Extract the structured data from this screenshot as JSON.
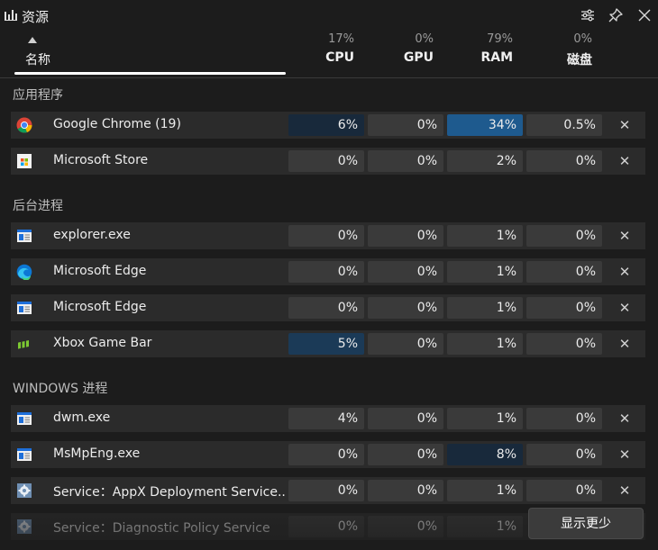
{
  "window": {
    "title": "资源"
  },
  "columns": {
    "name_label": "名称",
    "cpu": {
      "percent": "17%",
      "label": "CPU"
    },
    "gpu": {
      "percent": "0%",
      "label": "GPU"
    },
    "ram": {
      "percent": "79%",
      "label": "RAM"
    },
    "disk": {
      "percent": "0%",
      "label": "磁盘"
    }
  },
  "sections": [
    {
      "title": "应用程序",
      "rows": [
        {
          "name": "Google Chrome (19)",
          "icon": "chrome-icon",
          "cpu": "6%",
          "gpu": "0%",
          "ram": "34%",
          "disk": "0.5%"
        },
        {
          "name": "Microsoft Store",
          "icon": "microsoft-store-icon",
          "cpu": "0%",
          "gpu": "0%",
          "ram": "2%",
          "disk": "0%"
        }
      ]
    },
    {
      "title": "后台进程",
      "rows": [
        {
          "name": "explorer.exe",
          "icon": "app-window-icon",
          "cpu": "0%",
          "gpu": "0%",
          "ram": "1%",
          "disk": "0%"
        },
        {
          "name": "Microsoft Edge",
          "icon": "edge-icon",
          "cpu": "0%",
          "gpu": "0%",
          "ram": "1%",
          "disk": "0%"
        },
        {
          "name": "Microsoft Edge",
          "icon": "app-window-icon",
          "cpu": "0%",
          "gpu": "0%",
          "ram": "1%",
          "disk": "0%"
        },
        {
          "name": "Xbox Game Bar",
          "icon": "xbox-game-bar-icon",
          "cpu": "5%",
          "gpu": "0%",
          "ram": "1%",
          "disk": "0%"
        }
      ]
    },
    {
      "title": "WINDOWS 进程",
      "rows": [
        {
          "name": "dwm.exe",
          "icon": "app-window-icon",
          "cpu": "4%",
          "gpu": "0%",
          "ram": "1%",
          "disk": "0%"
        },
        {
          "name": "MsMpEng.exe",
          "icon": "app-window-icon",
          "cpu": "0%",
          "gpu": "0%",
          "ram": "8%",
          "disk": "0%"
        },
        {
          "name": "Service：AppX Deployment Service...",
          "icon": "service-gear-icon",
          "cpu": "0%",
          "gpu": "0%",
          "ram": "1%",
          "disk": "0%"
        },
        {
          "name": "Service：Diagnostic Policy Service",
          "icon": "service-gear-icon",
          "cpu": "0%",
          "gpu": "0%",
          "ram": "1%",
          "disk": ""
        }
      ]
    }
  ],
  "show_less_button": "显示更少",
  "colors": {
    "high": "#1e5a8e",
    "medium": "#1b3a57",
    "low": "#18293b",
    "cell": "#3a3a3a",
    "row": "#2b2b2b"
  }
}
